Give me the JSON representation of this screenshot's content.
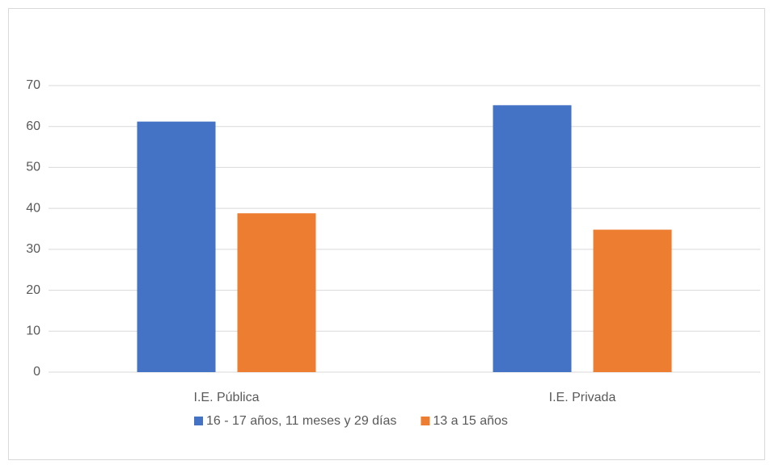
{
  "chart_data": {
    "type": "bar",
    "categories": [
      "I.E. Pública",
      "I.E. Privada"
    ],
    "series": [
      {
        "name": "16 - 17 años, 11 meses y 29 días",
        "color": "#4472c4",
        "values": [
          61.2,
          65.2
        ]
      },
      {
        "name": "13 a 15 años",
        "color": "#ed7d31",
        "values": [
          38.8,
          34.8
        ]
      }
    ],
    "ylim": [
      0,
      70
    ],
    "yticks": [
      0,
      10,
      20,
      30,
      40,
      50,
      60,
      70
    ],
    "grid": true,
    "legend": "bottom"
  }
}
